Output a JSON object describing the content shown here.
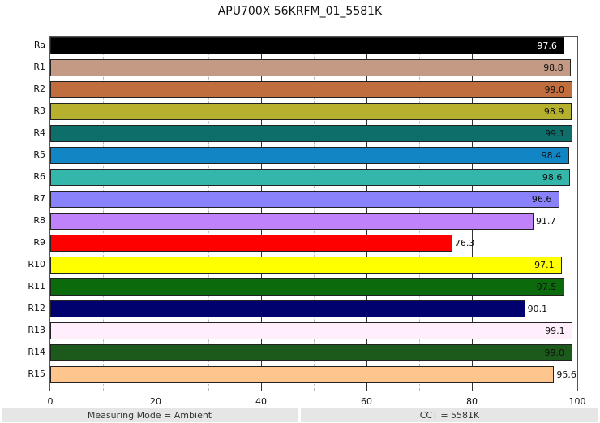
{
  "title": "APU700X 56KRFM_01_5581K",
  "footer": {
    "left": "Measuring Mode = Ambient",
    "right": "CCT = 5581K"
  },
  "chart_data": {
    "type": "bar",
    "orientation": "horizontal",
    "title": "APU700X 56KRFM_01_5581K",
    "xlabel": "",
    "ylabel": "",
    "xlim": [
      0,
      100
    ],
    "xticks": [
      "0",
      "20",
      "40",
      "60",
      "80",
      "100"
    ],
    "grid": {
      "major": [
        20,
        40,
        60,
        80
      ],
      "minor": [
        10,
        30,
        50,
        70,
        90
      ]
    },
    "categories": [
      "Ra",
      "R1",
      "R2",
      "R3",
      "R4",
      "R5",
      "R6",
      "R7",
      "R8",
      "R9",
      "R10",
      "R11",
      "R12",
      "R13",
      "R14",
      "R15"
    ],
    "values": [
      97.6,
      98.8,
      99.0,
      98.9,
      99.1,
      98.4,
      98.6,
      96.6,
      91.7,
      76.3,
      97.1,
      97.5,
      90.1,
      99.1,
      99.0,
      95.6
    ],
    "labels": [
      "97.6",
      "98.8",
      "99.0",
      "98.9",
      "99.1",
      "98.4",
      "98.6",
      "96.6",
      "91.7",
      "76.3",
      "97.1",
      "97.5",
      "90.1",
      "99.1",
      "99.0",
      "95.6"
    ],
    "colors": [
      "#000000",
      "#c49a84",
      "#c06e3e",
      "#b5b02d",
      "#0e6e6a",
      "#1285c5",
      "#35b6aa",
      "#8a82fb",
      "#bf82f8",
      "#ff0000",
      "#ffff00",
      "#0b6a0b",
      "#00006e",
      "#ffeefc",
      "#1c5a1c",
      "#ffc58e"
    ],
    "label_inside": [
      true,
      true,
      true,
      true,
      true,
      true,
      true,
      true,
      false,
      false,
      true,
      true,
      false,
      true,
      true,
      false
    ],
    "label_colors": [
      "#ffffff",
      "#111111",
      "#111111",
      "#111111",
      "#111111",
      "#111111",
      "#111111",
      "#111111",
      "#111111",
      "#111111",
      "#111111",
      "#111111",
      "#111111",
      "#111111",
      "#111111",
      "#111111"
    ]
  }
}
